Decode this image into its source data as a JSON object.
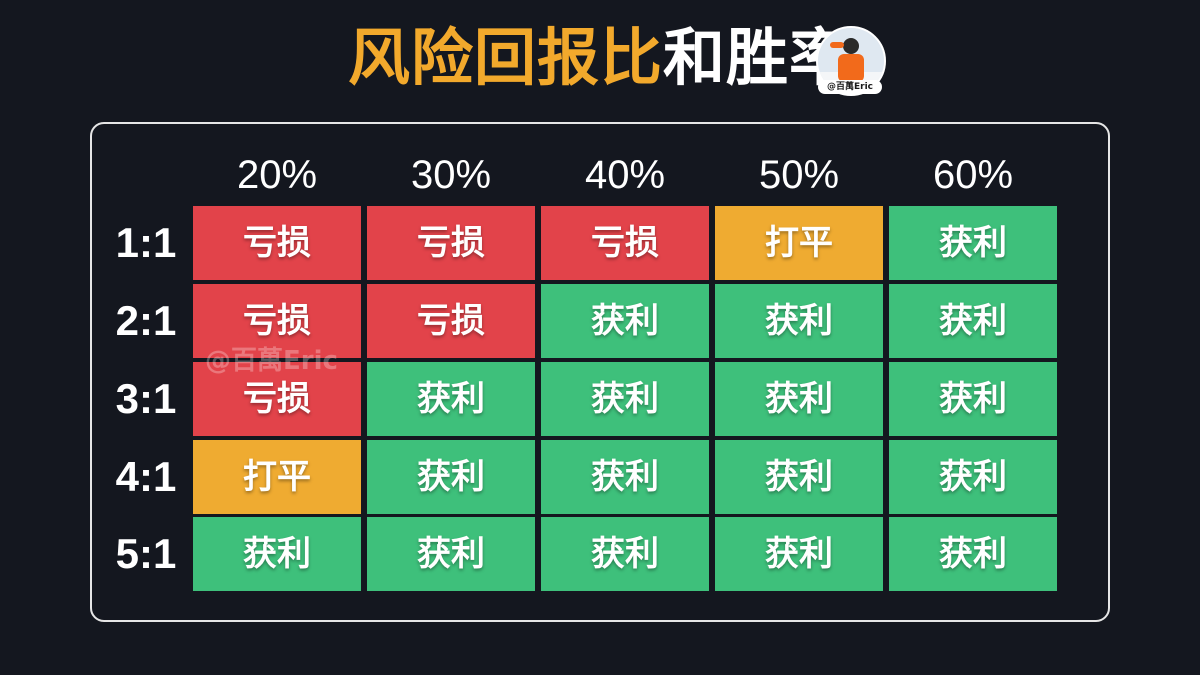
{
  "title": {
    "highlight": "风险回报比",
    "rest": "和胜率"
  },
  "avatar": {
    "badge": "@百萬Eric"
  },
  "watermark": "@百萬Eric",
  "columns": [
    "20%",
    "30%",
    "40%",
    "50%",
    "60%"
  ],
  "rows": [
    {
      "label": "1:1",
      "cells": [
        {
          "text": "亏损",
          "status": "loss"
        },
        {
          "text": "亏损",
          "status": "loss"
        },
        {
          "text": "亏损",
          "status": "loss"
        },
        {
          "text": "打平",
          "status": "even"
        },
        {
          "text": "获利",
          "status": "win"
        }
      ]
    },
    {
      "label": "2:1",
      "cells": [
        {
          "text": "亏损",
          "status": "loss"
        },
        {
          "text": "亏损",
          "status": "loss"
        },
        {
          "text": "获利",
          "status": "win"
        },
        {
          "text": "获利",
          "status": "win"
        },
        {
          "text": "获利",
          "status": "win"
        }
      ]
    },
    {
      "label": "3:1",
      "cells": [
        {
          "text": "亏损",
          "status": "loss"
        },
        {
          "text": "获利",
          "status": "win"
        },
        {
          "text": "获利",
          "status": "win"
        },
        {
          "text": "获利",
          "status": "win"
        },
        {
          "text": "获利",
          "status": "win"
        }
      ]
    },
    {
      "label": "4:1",
      "cells": [
        {
          "text": "打平",
          "status": "even"
        },
        {
          "text": "获利",
          "status": "win"
        },
        {
          "text": "获利",
          "status": "win"
        },
        {
          "text": "获利",
          "status": "win"
        },
        {
          "text": "获利",
          "status": "win"
        }
      ]
    },
    {
      "label": "5:1",
      "cells": [
        {
          "text": "获利",
          "status": "win"
        },
        {
          "text": "获利",
          "status": "win"
        },
        {
          "text": "获利",
          "status": "win"
        },
        {
          "text": "获利",
          "status": "win"
        },
        {
          "text": "获利",
          "status": "win"
        }
      ]
    }
  ],
  "colors": {
    "loss": "#e2434a",
    "even": "#efab31",
    "win": "#3ec07b",
    "highlight": "#f2a92c",
    "background": "#14171f"
  }
}
